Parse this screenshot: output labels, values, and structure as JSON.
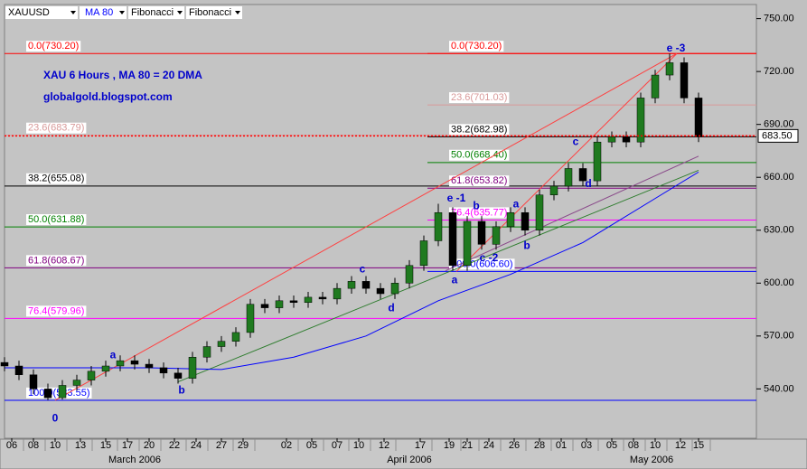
{
  "toolbar": [
    "XAUUSD",
    "MA 80",
    "Fibonacci",
    "Fibonacci"
  ],
  "chart_data": {
    "type": "candlestick",
    "title": "XAU 6 Hours , MA 80 = 20 DMA",
    "subtitle": "globalgold.blogspot.com",
    "xlim": [
      0,
      208
    ],
    "ylim": [
      512,
      758
    ],
    "yticks": [
      {
        "value": 540,
        "label": "540.00"
      },
      {
        "value": 570,
        "label": "570.00"
      },
      {
        "value": 600,
        "label": "600.00"
      },
      {
        "value": 630,
        "label": "630.00"
      },
      {
        "value": 660,
        "label": "660.00"
      },
      {
        "value": 690,
        "label": "690.00"
      },
      {
        "value": 720,
        "label": "720.00"
      },
      {
        "value": 750,
        "label": "750.00"
      }
    ],
    "xticks": [
      {
        "value": 2,
        "label": "06"
      },
      {
        "value": 8,
        "label": "08"
      },
      {
        "value": 14,
        "label": "10"
      },
      {
        "value": 21,
        "label": "13"
      },
      {
        "value": 28,
        "label": "15"
      },
      {
        "value": 34,
        "label": "17"
      },
      {
        "value": 40,
        "label": "20"
      },
      {
        "value": 47,
        "label": "22"
      },
      {
        "value": 53,
        "label": "24"
      },
      {
        "value": 60,
        "label": "27"
      },
      {
        "value": 66,
        "label": "29"
      },
      {
        "value": 78,
        "label": "02"
      },
      {
        "value": 85,
        "label": "05"
      },
      {
        "value": 92,
        "label": "07"
      },
      {
        "value": 98,
        "label": "10"
      },
      {
        "value": 105,
        "label": "12"
      },
      {
        "value": 115,
        "label": "17"
      },
      {
        "value": 123,
        "label": "19"
      },
      {
        "value": 128,
        "label": "21"
      },
      {
        "value": 134,
        "label": "24"
      },
      {
        "value": 141,
        "label": "26"
      },
      {
        "value": 148,
        "label": "28"
      },
      {
        "value": 154,
        "label": "01"
      },
      {
        "value": 161,
        "label": "03"
      },
      {
        "value": 168,
        "label": "05"
      },
      {
        "value": 174,
        "label": "08"
      },
      {
        "value": 180,
        "label": "10"
      },
      {
        "value": 187,
        "label": "12"
      },
      {
        "value": 192,
        "label": "15"
      }
    ],
    "month_ticks": [
      {
        "value": 36,
        "label": "March 2006"
      },
      {
        "value": 112,
        "label": "April 2006"
      },
      {
        "value": 179,
        "label": "May 2006"
      }
    ],
    "up_color": "#1f7a1f",
    "down_color": "#000000",
    "x": [
      0,
      4,
      8,
      12,
      16,
      20,
      24,
      28,
      32,
      36,
      40,
      44,
      48,
      52,
      56,
      60,
      64,
      68,
      72,
      76,
      80,
      84,
      88,
      92,
      96,
      100,
      104,
      108,
      112,
      116,
      120,
      124,
      128,
      132,
      136,
      140,
      144,
      148,
      152,
      156,
      160,
      164,
      168,
      172,
      176,
      180,
      184,
      188,
      192
    ],
    "open": [
      555,
      553,
      548,
      540,
      535,
      542,
      545,
      550,
      553,
      556,
      554,
      552,
      549,
      546,
      558,
      564,
      567,
      572,
      588,
      586,
      590,
      589,
      592,
      591,
      597,
      601,
      597,
      594,
      600,
      610,
      624,
      640,
      610,
      635,
      622,
      632,
      640,
      630,
      650,
      655,
      665,
      658,
      680,
      683,
      680,
      705,
      718,
      725,
      705
    ],
    "high": [
      558,
      556,
      551,
      543,
      545,
      548,
      553,
      556,
      559,
      559,
      557,
      555,
      552,
      561,
      567,
      570,
      575,
      591,
      591,
      593,
      593,
      595,
      595,
      600,
      604,
      604,
      600,
      603,
      613,
      627,
      645,
      643,
      638,
      638,
      635,
      643,
      643,
      653,
      658,
      668,
      668,
      683,
      686,
      686,
      708,
      721,
      730.2,
      728,
      708
    ],
    "low": [
      550,
      545,
      537,
      533.6,
      534,
      539,
      542,
      547,
      550,
      551,
      549,
      546,
      543,
      543,
      555,
      561,
      564,
      569,
      583,
      583,
      586,
      586,
      588,
      588,
      594,
      594,
      591,
      591,
      597,
      607,
      621,
      607,
      607,
      619,
      619,
      629,
      627,
      627,
      647,
      652,
      655,
      655,
      677,
      677,
      677,
      702,
      715,
      702,
      680
    ],
    "close": [
      553,
      548,
      540,
      535,
      542,
      545,
      550,
      553,
      556,
      554,
      552,
      549,
      546,
      558,
      564,
      567,
      572,
      588,
      586,
      590,
      589,
      592,
      591,
      597,
      601,
      597,
      594,
      600,
      610,
      624,
      640,
      610,
      635,
      622,
      632,
      640,
      630,
      650,
      655,
      665,
      658,
      680,
      683,
      680,
      705,
      718,
      725,
      705,
      683
    ],
    "ma": {
      "name": "MA 80",
      "color": "#0000ff",
      "x": [
        0,
        20,
        40,
        60,
        80,
        100,
        120,
        140,
        160,
        180,
        192
      ],
      "values": [
        552,
        552,
        552,
        551,
        558,
        570,
        590,
        605,
        623,
        648,
        663
      ]
    },
    "last_price": {
      "value": 683.5,
      "label": "683.50",
      "color": "#ff0000"
    },
    "fib_sets": [
      {
        "x_start": 0,
        "levels": [
          {
            "label": "0.0(730.20)",
            "value": 730.2,
            "color": "#ff0000"
          },
          {
            "label": "23.6(683.79)",
            "value": 683.79,
            "color": "#d89a9a"
          },
          {
            "label": "38.2(655.08)",
            "value": 655.08,
            "color": "#000000"
          },
          {
            "label": "50.0(631.88)",
            "value": 631.88,
            "color": "#008000"
          },
          {
            "label": "61.8(608.67)",
            "value": 608.67,
            "color": "#800080"
          },
          {
            "label": "76.4(579.96)",
            "value": 579.96,
            "color": "#ff00ff"
          },
          {
            "label": "100.0(533.55)",
            "value": 533.55,
            "color": "#0000ff"
          }
        ]
      },
      {
        "x_start": 117,
        "levels": [
          {
            "label": "0.0(730.20)",
            "value": 730.2,
            "color": "#ff0000"
          },
          {
            "label": "23.6(701.03)",
            "value": 701.03,
            "color": "#d89a9a"
          },
          {
            "label": "38.2(682.98)",
            "value": 682.98,
            "color": "#000000"
          },
          {
            "label": "50.0(668.40)",
            "value": 668.4,
            "color": "#008000"
          },
          {
            "label": "61.8(653.82)",
            "value": 653.82,
            "color": "#800080"
          },
          {
            "label": "76.4(635.77)",
            "value": 635.77,
            "color": "#ff00ff"
          },
          {
            "label": "100.0(606.60)",
            "value": 606.6,
            "color": "#0000ff"
          }
        ]
      }
    ],
    "trend_lines": [
      {
        "color": "#ff4040",
        "x": [
          14,
          186
        ],
        "y": [
          533.55,
          730.2
        ]
      },
      {
        "color": "#ff4040",
        "x": [
          125,
          186
        ],
        "y": [
          606.6,
          730.2
        ]
      },
      {
        "color": "#2e7d2e",
        "x": [
          48,
          192
        ],
        "y": [
          544,
          664
        ]
      },
      {
        "color": "#8a4a8a",
        "x": [
          122,
          192
        ],
        "y": [
          607,
          672
        ]
      }
    ],
    "annotations": [
      {
        "text": "0",
        "x": 14,
        "y": 523
      },
      {
        "text": "a",
        "x": 30,
        "y": 559
      },
      {
        "text": "b",
        "x": 49,
        "y": 539
      },
      {
        "text": "c",
        "x": 99,
        "y": 607.7
      },
      {
        "text": "d",
        "x": 107,
        "y": 585.6
      },
      {
        "text": "e -1",
        "x": 125,
        "y": 648
      },
      {
        "text": "b",
        "x": 130.5,
        "y": 643.5
      },
      {
        "text": "a",
        "x": 124.5,
        "y": 601.5
      },
      {
        "text": "c -2",
        "x": 134,
        "y": 614
      },
      {
        "text": "a",
        "x": 141.5,
        "y": 644.5
      },
      {
        "text": "b",
        "x": 144.5,
        "y": 621
      },
      {
        "text": "c",
        "x": 158,
        "y": 680
      },
      {
        "text": "d",
        "x": 161.5,
        "y": 656
      },
      {
        "text": "e -3",
        "x": 185.75,
        "y": 733
      }
    ]
  }
}
